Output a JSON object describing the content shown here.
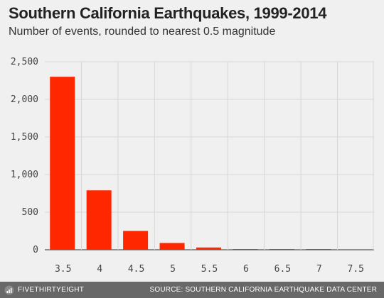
{
  "footer": {
    "brand": "FIVETHIRTYEIGHT",
    "source": "SOURCE: SOUTHERN CALIFORNIA EARTHQUAKE DATA CENTER"
  },
  "colors": {
    "bar": "#ff2700",
    "background": "#f0f0f0",
    "grid": "#d7d7d7",
    "footer": "#686868"
  },
  "chart_data": {
    "type": "bar",
    "title": "Southern California Earthquakes, 1999-2014",
    "subtitle": "Number of events, rounded to nearest 0.5 magnitude",
    "xlabel": "",
    "ylabel": "",
    "categories": [
      "3.5",
      "4",
      "4.5",
      "5",
      "5.5",
      "6",
      "6.5",
      "7",
      "7.5"
    ],
    "values": [
      2300,
      790,
      250,
      90,
      30,
      4,
      2,
      1,
      0
    ],
    "ylim": [
      0,
      2500
    ],
    "yticks": [
      0,
      500,
      1000,
      1500,
      2000,
      2500
    ],
    "ytick_labels": [
      "0",
      "500",
      "1,000",
      "1,500",
      "2,000",
      "2,500"
    ],
    "grid": true,
    "legend": "none"
  }
}
